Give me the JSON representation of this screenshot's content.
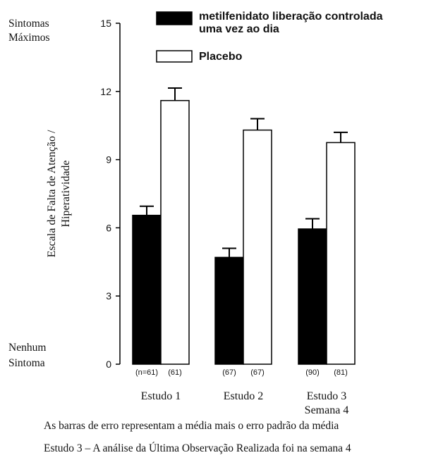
{
  "chart_data": {
    "type": "bar",
    "ylabel_lines": [
      "Escala de Falta de Atenção /",
      "Hiperatividade"
    ],
    "y_top_label": [
      "Sintomas",
      "Máximos"
    ],
    "y_bottom_label": [
      "Nenhum",
      "Sintoma"
    ],
    "ylim": [
      0,
      15
    ],
    "yticks": [
      0,
      3,
      6,
      9,
      12,
      15
    ],
    "categories": [
      {
        "lines": [
          "Estudo 1"
        ]
      },
      {
        "lines": [
          "Estudo 2"
        ]
      },
      {
        "lines": [
          "Estudo 3",
          "Semana 4"
        ]
      }
    ],
    "series": [
      {
        "name_lines": [
          "metilfenidato liberação controlada",
          "uma vez ao dia"
        ],
        "color": "#000000",
        "values": [
          6.55,
          4.7,
          5.95
        ],
        "errors": [
          0.4,
          0.4,
          0.45
        ],
        "n_labels": [
          "(n=61)",
          "(67)",
          "(90)"
        ]
      },
      {
        "name_lines": [
          "Placebo"
        ],
        "color": "#ffffff",
        "values": [
          11.6,
          10.3,
          9.75
        ],
        "errors": [
          0.55,
          0.5,
          0.45
        ],
        "n_labels": [
          "(61)",
          "(67)",
          "(81)"
        ]
      }
    ],
    "legend_position": "top",
    "grid": false
  },
  "captions": [
    "As barras de erro representam a média mais o erro padrão da média",
    "Estudo 3 – A análise da Última Observação Realizada foi na semana 4"
  ]
}
